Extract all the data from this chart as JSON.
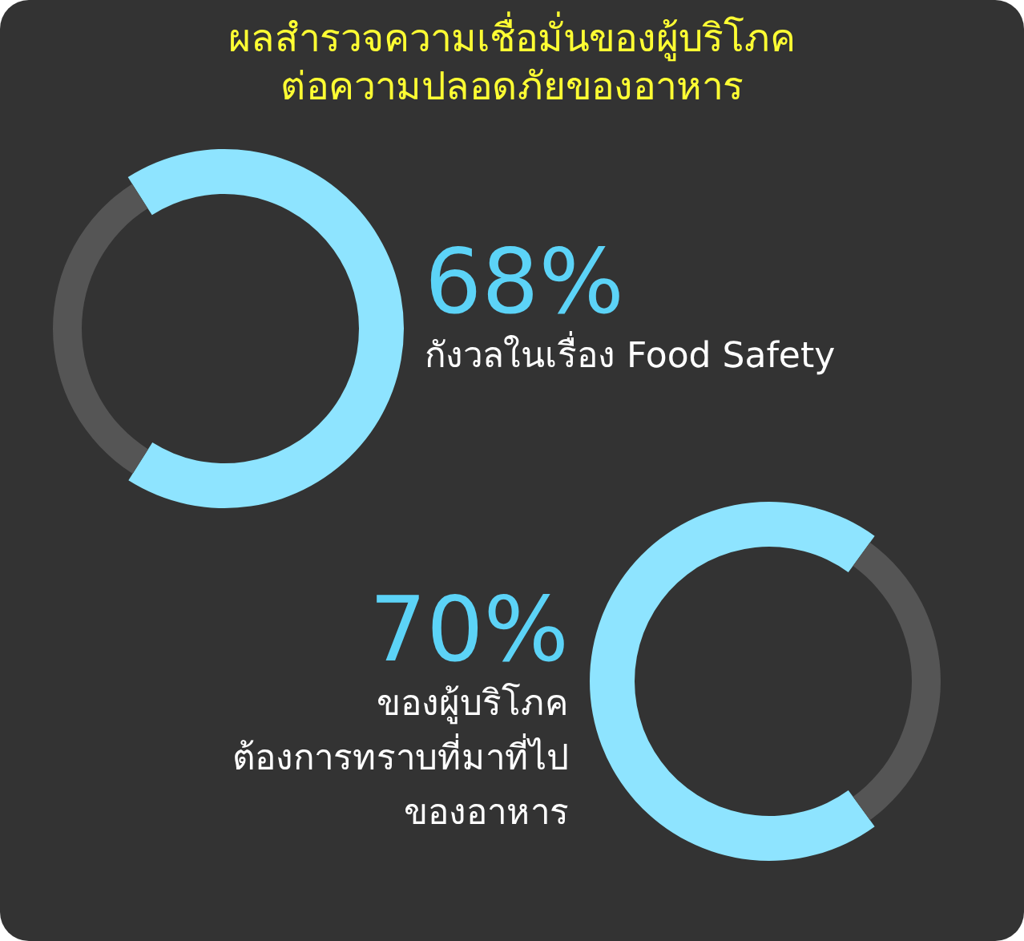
{
  "chart_data": [
    {
      "type": "donut",
      "title": "ผลสำรวจความเชื่อมั่นของผู้บริโภค\nต่อความปลอดภัยของอาหาร",
      "categories": [
        null,
        null
      ],
      "values": [
        68,
        32
      ],
      "colors": [
        "#8ee4ff",
        "#555555"
      ],
      "value_labels": [
        "68%",
        null
      ],
      "annotations": [
        "กังวลในเรื่อง Food Safety"
      ]
    },
    {
      "type": "donut",
      "categories": [
        null,
        null
      ],
      "values": [
        70,
        30
      ],
      "colors": [
        "#8ee4ff",
        "#555555"
      ],
      "value_labels": [
        "70%",
        null
      ],
      "annotations": [
        "ของผู้บริโภค\nต้องการทราบที่มาที่ไป\nของอาหาร"
      ]
    }
  ]
}
